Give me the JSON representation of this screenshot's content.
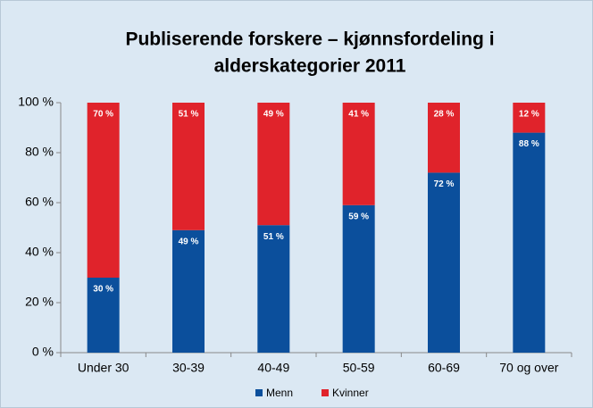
{
  "chart_data": {
    "type": "stacked_bar",
    "title": [
      "Publiserende forskere – kjønnsfordeling i",
      "alderskategorier 2011"
    ],
    "categories": [
      "Under 30",
      "30-39",
      "40-49",
      "50-59",
      "60-69",
      "70 og over"
    ],
    "series": [
      {
        "name": "Menn",
        "color": "#0b4f9c",
        "values": [
          30,
          49,
          51,
          59,
          72,
          88
        ],
        "value_labels": [
          "30 %",
          "49 %",
          "51 %",
          "59 %",
          "72 %",
          "88 %"
        ]
      },
      {
        "name": "Kvinner",
        "color": "#e0232b",
        "values": [
          70,
          51,
          49,
          41,
          28,
          12
        ],
        "value_labels": [
          "70 %",
          "51 %",
          "49 %",
          "41 %",
          "28 %",
          "12 %"
        ]
      }
    ],
    "ylim": [
      0,
      100
    ],
    "yticks": [
      {
        "value": 0,
        "label": "0 %"
      },
      {
        "value": 20,
        "label": "20 %"
      },
      {
        "value": 40,
        "label": "40 %"
      },
      {
        "value": 60,
        "label": "60 %"
      },
      {
        "value": 80,
        "label": "80 %"
      },
      {
        "value": 100,
        "label": "100 %"
      }
    ],
    "grid": false,
    "legend": "bottom"
  }
}
